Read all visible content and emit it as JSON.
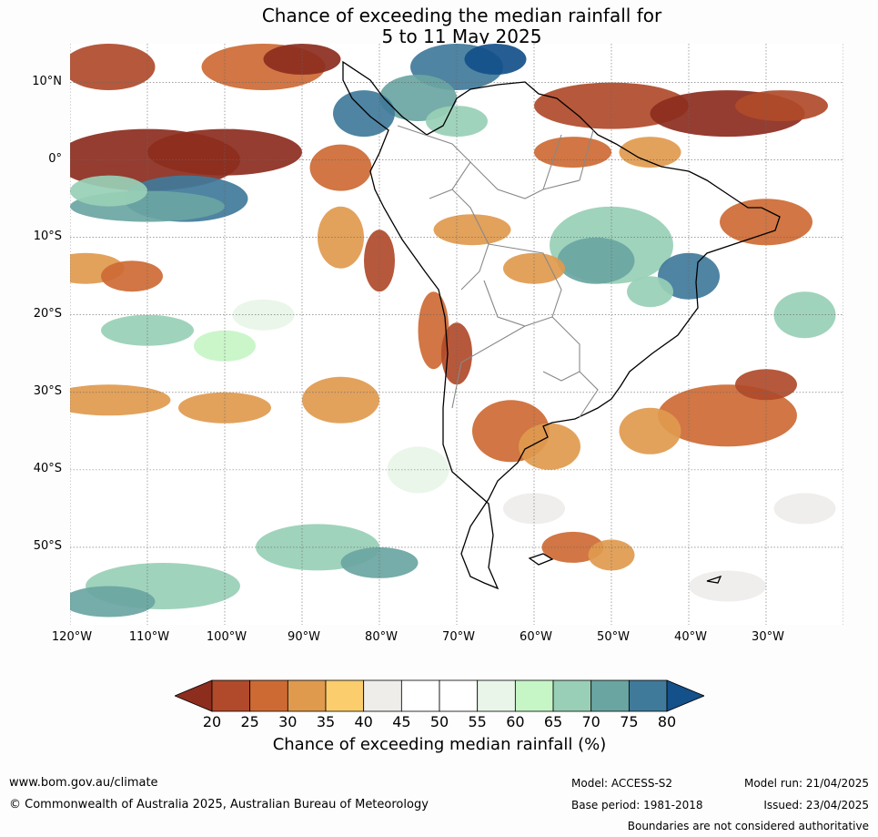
{
  "title": {
    "line1": "Chance of exceeding the median rainfall for",
    "line2": "5 to 11 May 2025"
  },
  "map": {
    "lat_labels": [
      "10°N",
      "0°",
      "10°S",
      "20°S",
      "30°S",
      "40°S",
      "50°S"
    ],
    "lon_labels": [
      "120°W",
      "110°W",
      "100°W",
      "90°W",
      "80°W",
      "70°W",
      "60°W",
      "50°W",
      "40°W",
      "30°W"
    ],
    "lon_extent": [
      -120,
      -20
    ],
    "lat_extent": [
      -60,
      15
    ],
    "palette": {
      "20": "#8c2d1e",
      "25": "#b04a2a",
      "30": "#cd6a34",
      "35": "#e09a4e",
      "40": "#fbcd6c",
      "45": "#efedea",
      "50": "#ffffff",
      "55": "#ffffff",
      "60": "#e8f5e8",
      "65": "#c6f5c6",
      "70": "#98cfb6",
      "75": "#6aa5a2",
      "80": "#407a9a",
      "85": "#14508a"
    }
  },
  "colorbar": {
    "ticks": [
      "20",
      "25",
      "30",
      "35",
      "40",
      "45",
      "50",
      "55",
      "60",
      "65",
      "70",
      "75",
      "80"
    ],
    "colors": [
      "#b04a2a",
      "#cd6a34",
      "#e09a4e",
      "#fbcd6c",
      "#efedea",
      "#ffffff",
      "#ffffff",
      "#e8f5e8",
      "#c6f5c6",
      "#98cfb6",
      "#6aa5a2",
      "#407a9a"
    ],
    "low_color": "#8c2d1e",
    "high_color": "#14508a",
    "label": "Chance of exceeding median rainfall (%)"
  },
  "footer": {
    "website": "www.bom.gov.au/climate",
    "copyright": "© Commonwealth of Australia 2025, Australian Bureau of Meteorology",
    "model": "Model: ACCESS-S2",
    "base_period": "Base period: 1981-2018",
    "model_run": "Model run: 21/04/2025",
    "issued": "Issued: 23/04/2025",
    "disclaimer": "Boundaries are not considered authoritative"
  }
}
